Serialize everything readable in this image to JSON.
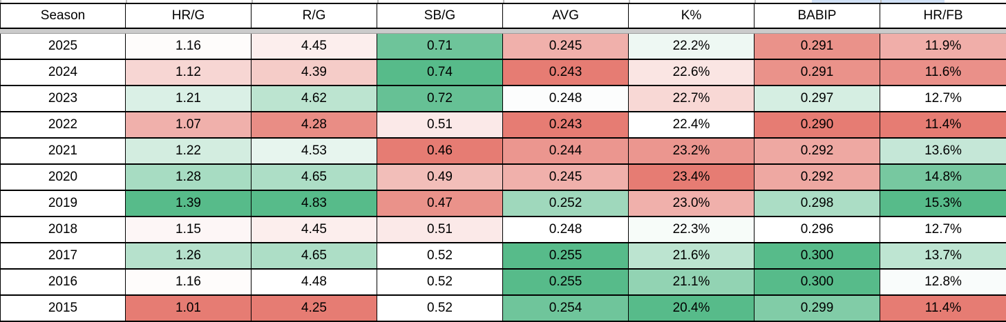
{
  "table": {
    "columns": [
      "Season",
      "HR/G",
      "R/G",
      "SB/G",
      "AVG",
      "K%",
      "BABIP",
      "HR/FB"
    ],
    "rows": [
      {
        "season": "2025",
        "cells": [
          {
            "v": "1.16",
            "bg": "#fefcfb"
          },
          {
            "v": "4.45",
            "bg": "#fceeed"
          },
          {
            "v": "0.71",
            "bg": "#6ec49a"
          },
          {
            "v": "0.245",
            "bg": "#f0b0ab"
          },
          {
            "v": "22.2%",
            "bg": "#eef8f3"
          },
          {
            "v": "0.291",
            "bg": "#ea928a"
          },
          {
            "v": "11.9%",
            "bg": "#f0aea9"
          }
        ]
      },
      {
        "season": "2024",
        "cells": [
          {
            "v": "1.12",
            "bg": "#f7d6d3"
          },
          {
            "v": "4.39",
            "bg": "#f5ccc8"
          },
          {
            "v": "0.74",
            "bg": "#57bb8a"
          },
          {
            "v": "0.243",
            "bg": "#e67c73"
          },
          {
            "v": "22.6%",
            "bg": "#fae5e3"
          },
          {
            "v": "0.291",
            "bg": "#ea928a"
          },
          {
            "v": "11.6%",
            "bg": "#ea9089"
          }
        ]
      },
      {
        "season": "2023",
        "cells": [
          {
            "v": "1.21",
            "bg": "#daf0e6"
          },
          {
            "v": "4.62",
            "bg": "#bce4d0"
          },
          {
            "v": "0.72",
            "bg": "#66c195"
          },
          {
            "v": "0.248",
            "bg": "#fcfdfd"
          },
          {
            "v": "22.7%",
            "bg": "#f8d8d5"
          },
          {
            "v": "0.297",
            "bg": "#d5eee2"
          },
          {
            "v": "12.7%",
            "bg": "#ffffff"
          }
        ]
      },
      {
        "season": "2022",
        "cells": [
          {
            "v": "1.07",
            "bg": "#f0b0ab"
          },
          {
            "v": "4.28",
            "bg": "#e98d85"
          },
          {
            "v": "0.51",
            "bg": "#fbe9e8"
          },
          {
            "v": "0.243",
            "bg": "#e67c73"
          },
          {
            "v": "22.4%",
            "bg": "#ffffff"
          },
          {
            "v": "0.290",
            "bg": "#e67c73"
          },
          {
            "v": "11.4%",
            "bg": "#e67c73"
          }
        ]
      },
      {
        "season": "2021",
        "cells": [
          {
            "v": "1.22",
            "bg": "#d3ede0"
          },
          {
            "v": "4.53",
            "bg": "#e7f5ee"
          },
          {
            "v": "0.46",
            "bg": "#e67c73"
          },
          {
            "v": "0.244",
            "bg": "#eb968f"
          },
          {
            "v": "23.2%",
            "bg": "#eb968f"
          },
          {
            "v": "0.292",
            "bg": "#eea8a2"
          },
          {
            "v": "13.6%",
            "bg": "#c5e7d7"
          }
        ]
      },
      {
        "season": "2020",
        "cells": [
          {
            "v": "1.28",
            "bg": "#a7dcc2"
          },
          {
            "v": "4.65",
            "bg": "#addec6"
          },
          {
            "v": "0.49",
            "bg": "#f2beb9"
          },
          {
            "v": "0.245",
            "bg": "#f0b0ab"
          },
          {
            "v": "23.4%",
            "bg": "#e67c73"
          },
          {
            "v": "0.292",
            "bg": "#eea8a2"
          },
          {
            "v": "14.8%",
            "bg": "#77c8a0"
          }
        ]
      },
      {
        "season": "2019",
        "cells": [
          {
            "v": "1.39",
            "bg": "#57bb8a"
          },
          {
            "v": "4.83",
            "bg": "#57bb8a"
          },
          {
            "v": "0.47",
            "bg": "#ea928a"
          },
          {
            "v": "0.252",
            "bg": "#9fd8bc"
          },
          {
            "v": "23.0%",
            "bg": "#f0b0ab"
          },
          {
            "v": "0.298",
            "bg": "#abddc5"
          },
          {
            "v": "15.3%",
            "bg": "#57bb8a"
          }
        ]
      },
      {
        "season": "2018",
        "cells": [
          {
            "v": "1.15",
            "bg": "#fdf6f6"
          },
          {
            "v": "4.45",
            "bg": "#fceeed"
          },
          {
            "v": "0.51",
            "bg": "#fbe9e8"
          },
          {
            "v": "0.248",
            "bg": "#ffffff"
          },
          {
            "v": "22.3%",
            "bg": "#f7fcf9"
          },
          {
            "v": "0.296",
            "bg": "#ffffff"
          },
          {
            "v": "12.7%",
            "bg": "#ffffff"
          }
        ]
      },
      {
        "season": "2017",
        "cells": [
          {
            "v": "1.26",
            "bg": "#b6e1cc"
          },
          {
            "v": "4.65",
            "bg": "#addec6"
          },
          {
            "v": "0.52",
            "bg": "#ffffff"
          },
          {
            "v": "0.255",
            "bg": "#57bb8a"
          },
          {
            "v": "21.6%",
            "bg": "#bce4d0"
          },
          {
            "v": "0.300",
            "bg": "#57bb8a"
          },
          {
            "v": "13.7%",
            "bg": "#bee5d2"
          }
        ]
      },
      {
        "season": "2016",
        "cells": [
          {
            "v": "1.16",
            "bg": "#fefcfb"
          },
          {
            "v": "4.48",
            "bg": "#ffffff"
          },
          {
            "v": "0.52",
            "bg": "#ffffff"
          },
          {
            "v": "0.255",
            "bg": "#57bb8a"
          },
          {
            "v": "21.1%",
            "bg": "#92d3b3"
          },
          {
            "v": "0.300",
            "bg": "#57bb8a"
          },
          {
            "v": "12.8%",
            "bg": "#f9fcfb"
          }
        ]
      },
      {
        "season": "2015",
        "cells": [
          {
            "v": "1.01",
            "bg": "#e67c73"
          },
          {
            "v": "4.25",
            "bg": "#e67c73"
          },
          {
            "v": "0.52",
            "bg": "#ffffff"
          },
          {
            "v": "0.254",
            "bg": "#6fc59b"
          },
          {
            "v": "20.4%",
            "bg": "#57bb8a"
          },
          {
            "v": "0.299",
            "bg": "#81cca7"
          },
          {
            "v": "11.4%",
            "bg": "#e67c73"
          }
        ]
      }
    ]
  },
  "chart_data": {
    "type": "table",
    "title": "",
    "categories": [
      "2025",
      "2024",
      "2023",
      "2022",
      "2021",
      "2020",
      "2019",
      "2018",
      "2017",
      "2016",
      "2015"
    ],
    "series": [
      {
        "name": "HR/G",
        "values": [
          1.16,
          1.12,
          1.21,
          1.07,
          1.22,
          1.28,
          1.39,
          1.15,
          1.26,
          1.16,
          1.01
        ]
      },
      {
        "name": "R/G",
        "values": [
          4.45,
          4.39,
          4.62,
          4.28,
          4.53,
          4.65,
          4.83,
          4.45,
          4.65,
          4.48,
          4.25
        ]
      },
      {
        "name": "SB/G",
        "values": [
          0.71,
          0.74,
          0.72,
          0.51,
          0.46,
          0.49,
          0.47,
          0.51,
          0.52,
          0.52,
          0.52
        ]
      },
      {
        "name": "AVG",
        "values": [
          0.245,
          0.243,
          0.248,
          0.243,
          0.244,
          0.245,
          0.252,
          0.248,
          0.255,
          0.255,
          0.254
        ]
      },
      {
        "name": "K%",
        "values": [
          22.2,
          22.6,
          22.7,
          22.4,
          23.2,
          23.4,
          23.0,
          22.3,
          21.6,
          21.1,
          20.4
        ]
      },
      {
        "name": "BABIP",
        "values": [
          0.291,
          0.291,
          0.297,
          0.29,
          0.292,
          0.292,
          0.298,
          0.296,
          0.3,
          0.3,
          0.299
        ]
      },
      {
        "name": "HR/FB",
        "values": [
          11.9,
          11.6,
          12.7,
          11.4,
          13.6,
          14.8,
          15.3,
          12.7,
          13.7,
          12.8,
          11.4
        ]
      }
    ],
    "layout_hints": {
      "heatmap_per_column": true,
      "kpct_scale_reversed": true,
      "grid": true,
      "legend": "none"
    },
    "color_scale": {
      "low": "#e67c73",
      "mid": "#ffffff",
      "high": "#57bb8a"
    }
  },
  "colors": {
    "cell_border": "#000000",
    "frozen_divider": "#cbcbcb",
    "selection_fragment": "#cfe0f5"
  }
}
